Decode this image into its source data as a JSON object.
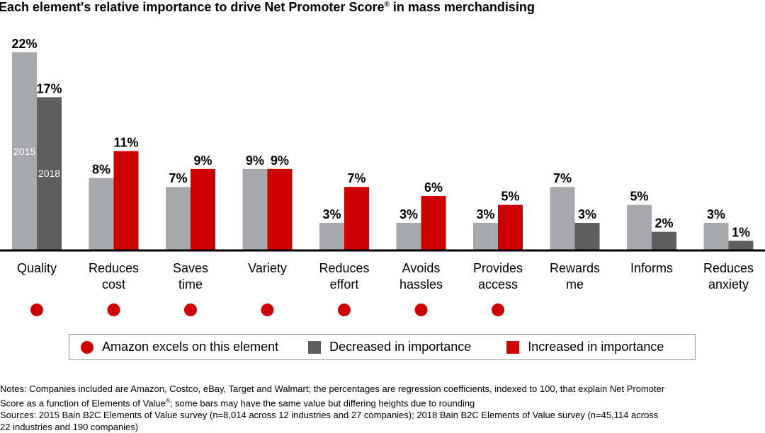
{
  "title": "Each element's relative importance to drive Net Promoter Score",
  "title_mark": "®",
  "title_suffix": " in mass merchandising",
  "colors": {
    "y2015": "#a7a8ab",
    "decreased": "#5e5e5e",
    "increased": "#cc0000",
    "amazon_dot": "#cc0000"
  },
  "chart_data": {
    "type": "bar",
    "categories": [
      "Quality",
      "Reduces cost",
      "Saves time",
      "Variety",
      "Reduces effort",
      "Avoids hassles",
      "Provides access",
      "Rewards me",
      "Informs",
      "Reduces anxiety"
    ],
    "category_lines": [
      [
        "Quality"
      ],
      [
        "Reduces",
        "cost"
      ],
      [
        "Saves",
        "time"
      ],
      [
        "Variety"
      ],
      [
        "Reduces",
        "effort"
      ],
      [
        "Avoids",
        "hassles"
      ],
      [
        "Provides",
        "access"
      ],
      [
        "Rewards",
        "me"
      ],
      [
        "Informs"
      ],
      [
        "Reduces",
        "anxiety"
      ]
    ],
    "series": [
      {
        "name": "2015",
        "values": [
          22,
          8,
          7,
          9,
          3,
          3,
          3,
          7,
          5,
          3
        ]
      },
      {
        "name": "2018",
        "values": [
          17,
          11,
          9,
          9,
          7,
          6,
          5,
          3,
          2,
          1
        ]
      }
    ],
    "labels_2015": [
      "22%",
      "8%",
      "7%",
      "9%",
      "3%",
      "3%",
      "3%",
      "7%",
      "5%",
      "3%"
    ],
    "labels_2018": [
      "17%",
      "11%",
      "9%",
      "9%",
      "7%",
      "6%",
      "5%",
      "3%",
      "2%",
      "1%"
    ],
    "change_2018": [
      "decreased",
      "increased",
      "increased",
      "increased",
      "increased",
      "increased",
      "increased",
      "decreased",
      "decreased",
      "decreased"
    ],
    "amazon_excels": [
      true,
      true,
      true,
      true,
      true,
      true,
      true,
      false,
      false,
      false
    ],
    "ylim": [
      0,
      22
    ],
    "grid": false,
    "legend_placement": "bottom"
  },
  "legend": {
    "amazon": "Amazon excels on this element",
    "decreased": "Decreased in importance",
    "increased": "Increased in importance"
  },
  "notes": {
    "line1": "Notes: Companies included are Amazon, Costco, eBay, Target and Walmart; the percentages are regression coefficients, indexed to 100, that explain Net Promoter",
    "line2a": "Score as a function of Elements of Value",
    "line2mark": "®",
    "line2b": "; some bars may have the same value but differing heights due to rounding",
    "line3": "Sources: 2015 Bain B2C Elements of Value survey (n=8,014 across 12 industries and 27 companies); 2018 Bain B2C Elements of Value survey (n=45,114 across",
    "line4": "22 industries and 190 companies)"
  }
}
